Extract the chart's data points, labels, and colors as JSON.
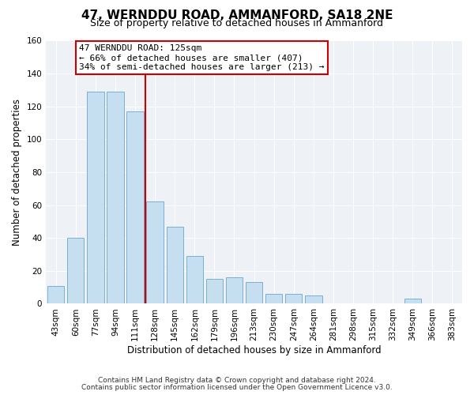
{
  "title": "47, WERNDDU ROAD, AMMANFORD, SA18 2NE",
  "subtitle": "Size of property relative to detached houses in Ammanford",
  "xlabel": "Distribution of detached houses by size in Ammanford",
  "ylabel": "Number of detached properties",
  "bar_labels": [
    "43sqm",
    "60sqm",
    "77sqm",
    "94sqm",
    "111sqm",
    "128sqm",
    "145sqm",
    "162sqm",
    "179sqm",
    "196sqm",
    "213sqm",
    "230sqm",
    "247sqm",
    "264sqm",
    "281sqm",
    "298sqm",
    "315sqm",
    "332sqm",
    "349sqm",
    "366sqm",
    "383sqm"
  ],
  "bar_values": [
    11,
    40,
    129,
    129,
    117,
    62,
    47,
    29,
    15,
    16,
    13,
    6,
    6,
    5,
    0,
    0,
    0,
    0,
    3,
    0,
    0
  ],
  "bar_color": "#c5dff0",
  "bar_edge_color": "#7ab0d4",
  "vline_color": "#cc0000",
  "ylim": [
    0,
    160
  ],
  "yticks": [
    0,
    20,
    40,
    60,
    80,
    100,
    120,
    140,
    160
  ],
  "annotation_title": "47 WERNDDU ROAD: 125sqm",
  "annotation_line1": "← 66% of detached houses are smaller (407)",
  "annotation_line2": "34% of semi-detached houses are larger (213) →",
  "footer_line1": "Contains HM Land Registry data © Crown copyright and database right 2024.",
  "footer_line2": "Contains public sector information licensed under the Open Government Licence v3.0.",
  "background_color": "#eef2f7",
  "grid_color": "#ffffff",
  "title_fontsize": 11,
  "subtitle_fontsize": 9
}
